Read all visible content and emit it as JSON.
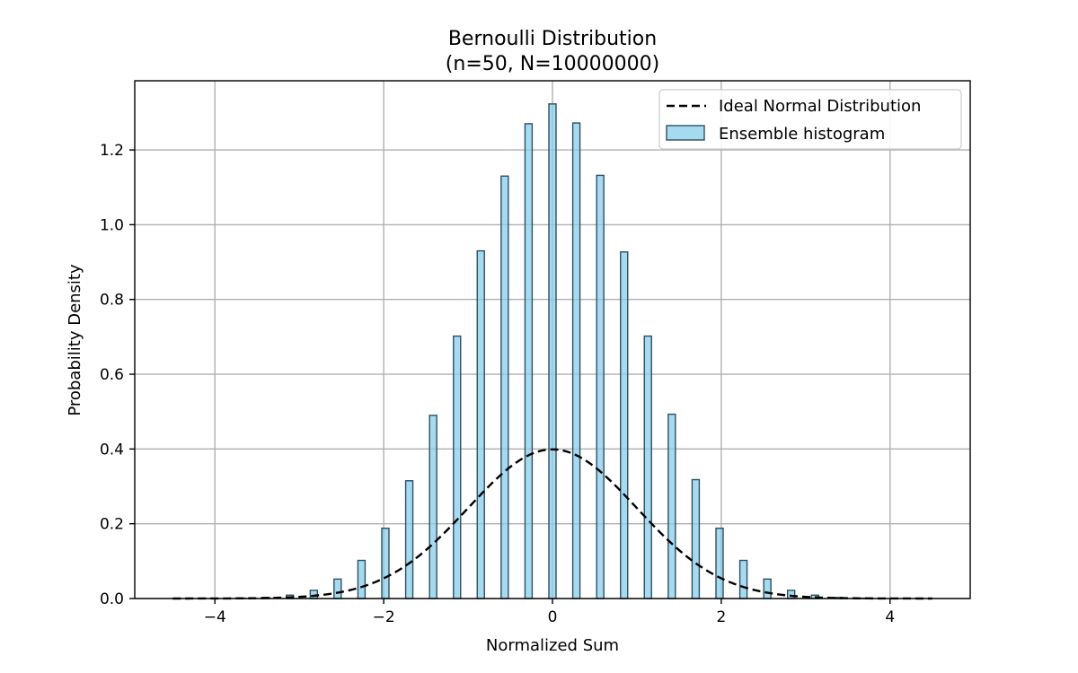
{
  "chart_data": {
    "type": "bar",
    "title": "Bernoulli Distribution",
    "subtitle": "(n=50, N=10000000)",
    "xlabel": "Normalized Sum",
    "ylabel": "Probability Density",
    "xlim": [
      -4.95,
      4.95
    ],
    "ylim": [
      0,
      1.385
    ],
    "xticks": [
      -4,
      -2,
      0,
      2,
      4
    ],
    "xtick_labels": [
      "−4",
      "−2",
      "0",
      "2",
      "4"
    ],
    "yticks": [
      0.0,
      0.2,
      0.4,
      0.6,
      0.8,
      1.0,
      1.2
    ],
    "ytick_labels": [
      "0.0",
      "0.2",
      "0.4",
      "0.6",
      "0.8",
      "1.0",
      "1.2"
    ],
    "grid": true,
    "legend_position": "top-right",
    "legend": [
      {
        "label": "Ideal Normal Distribution",
        "kind": "dashed-line",
        "color": "#000000"
      },
      {
        "label": "Ensemble histogram",
        "kind": "bar",
        "color": "#87CEEB"
      }
    ],
    "histogram": {
      "name": "Ensemble histogram",
      "color": "#87CEEB",
      "edge_color": "#2f4f5f",
      "bar_width": 0.085,
      "x": [
        -4.525,
        -4.243,
        -3.96,
        -3.677,
        -3.394,
        -3.111,
        -2.828,
        -2.546,
        -2.263,
        -1.98,
        -1.697,
        -1.414,
        -1.131,
        -0.849,
        -0.566,
        -0.283,
        0.0,
        0.283,
        0.566,
        0.849,
        1.131,
        1.414,
        1.697,
        1.98,
        2.263,
        2.546,
        2.828,
        3.111,
        3.394,
        3.677,
        3.96,
        4.243,
        4.525
      ],
      "values": [
        0.0,
        0.0,
        0.0,
        0.001,
        0.003,
        0.009,
        0.022,
        0.052,
        0.102,
        0.188,
        0.315,
        0.49,
        0.702,
        0.93,
        1.13,
        1.27,
        1.323,
        1.272,
        1.132,
        0.927,
        0.702,
        0.493,
        0.318,
        0.188,
        0.102,
        0.052,
        0.022,
        0.009,
        0.003,
        0.001,
        0.0,
        0.0,
        0.0
      ]
    },
    "series": [
      {
        "name": "Ideal Normal Distribution",
        "type": "line",
        "style": "dashed",
        "color": "#000000",
        "function": "standard_normal_pdf",
        "x_range": [
          -4.5,
          4.5
        ]
      }
    ]
  }
}
